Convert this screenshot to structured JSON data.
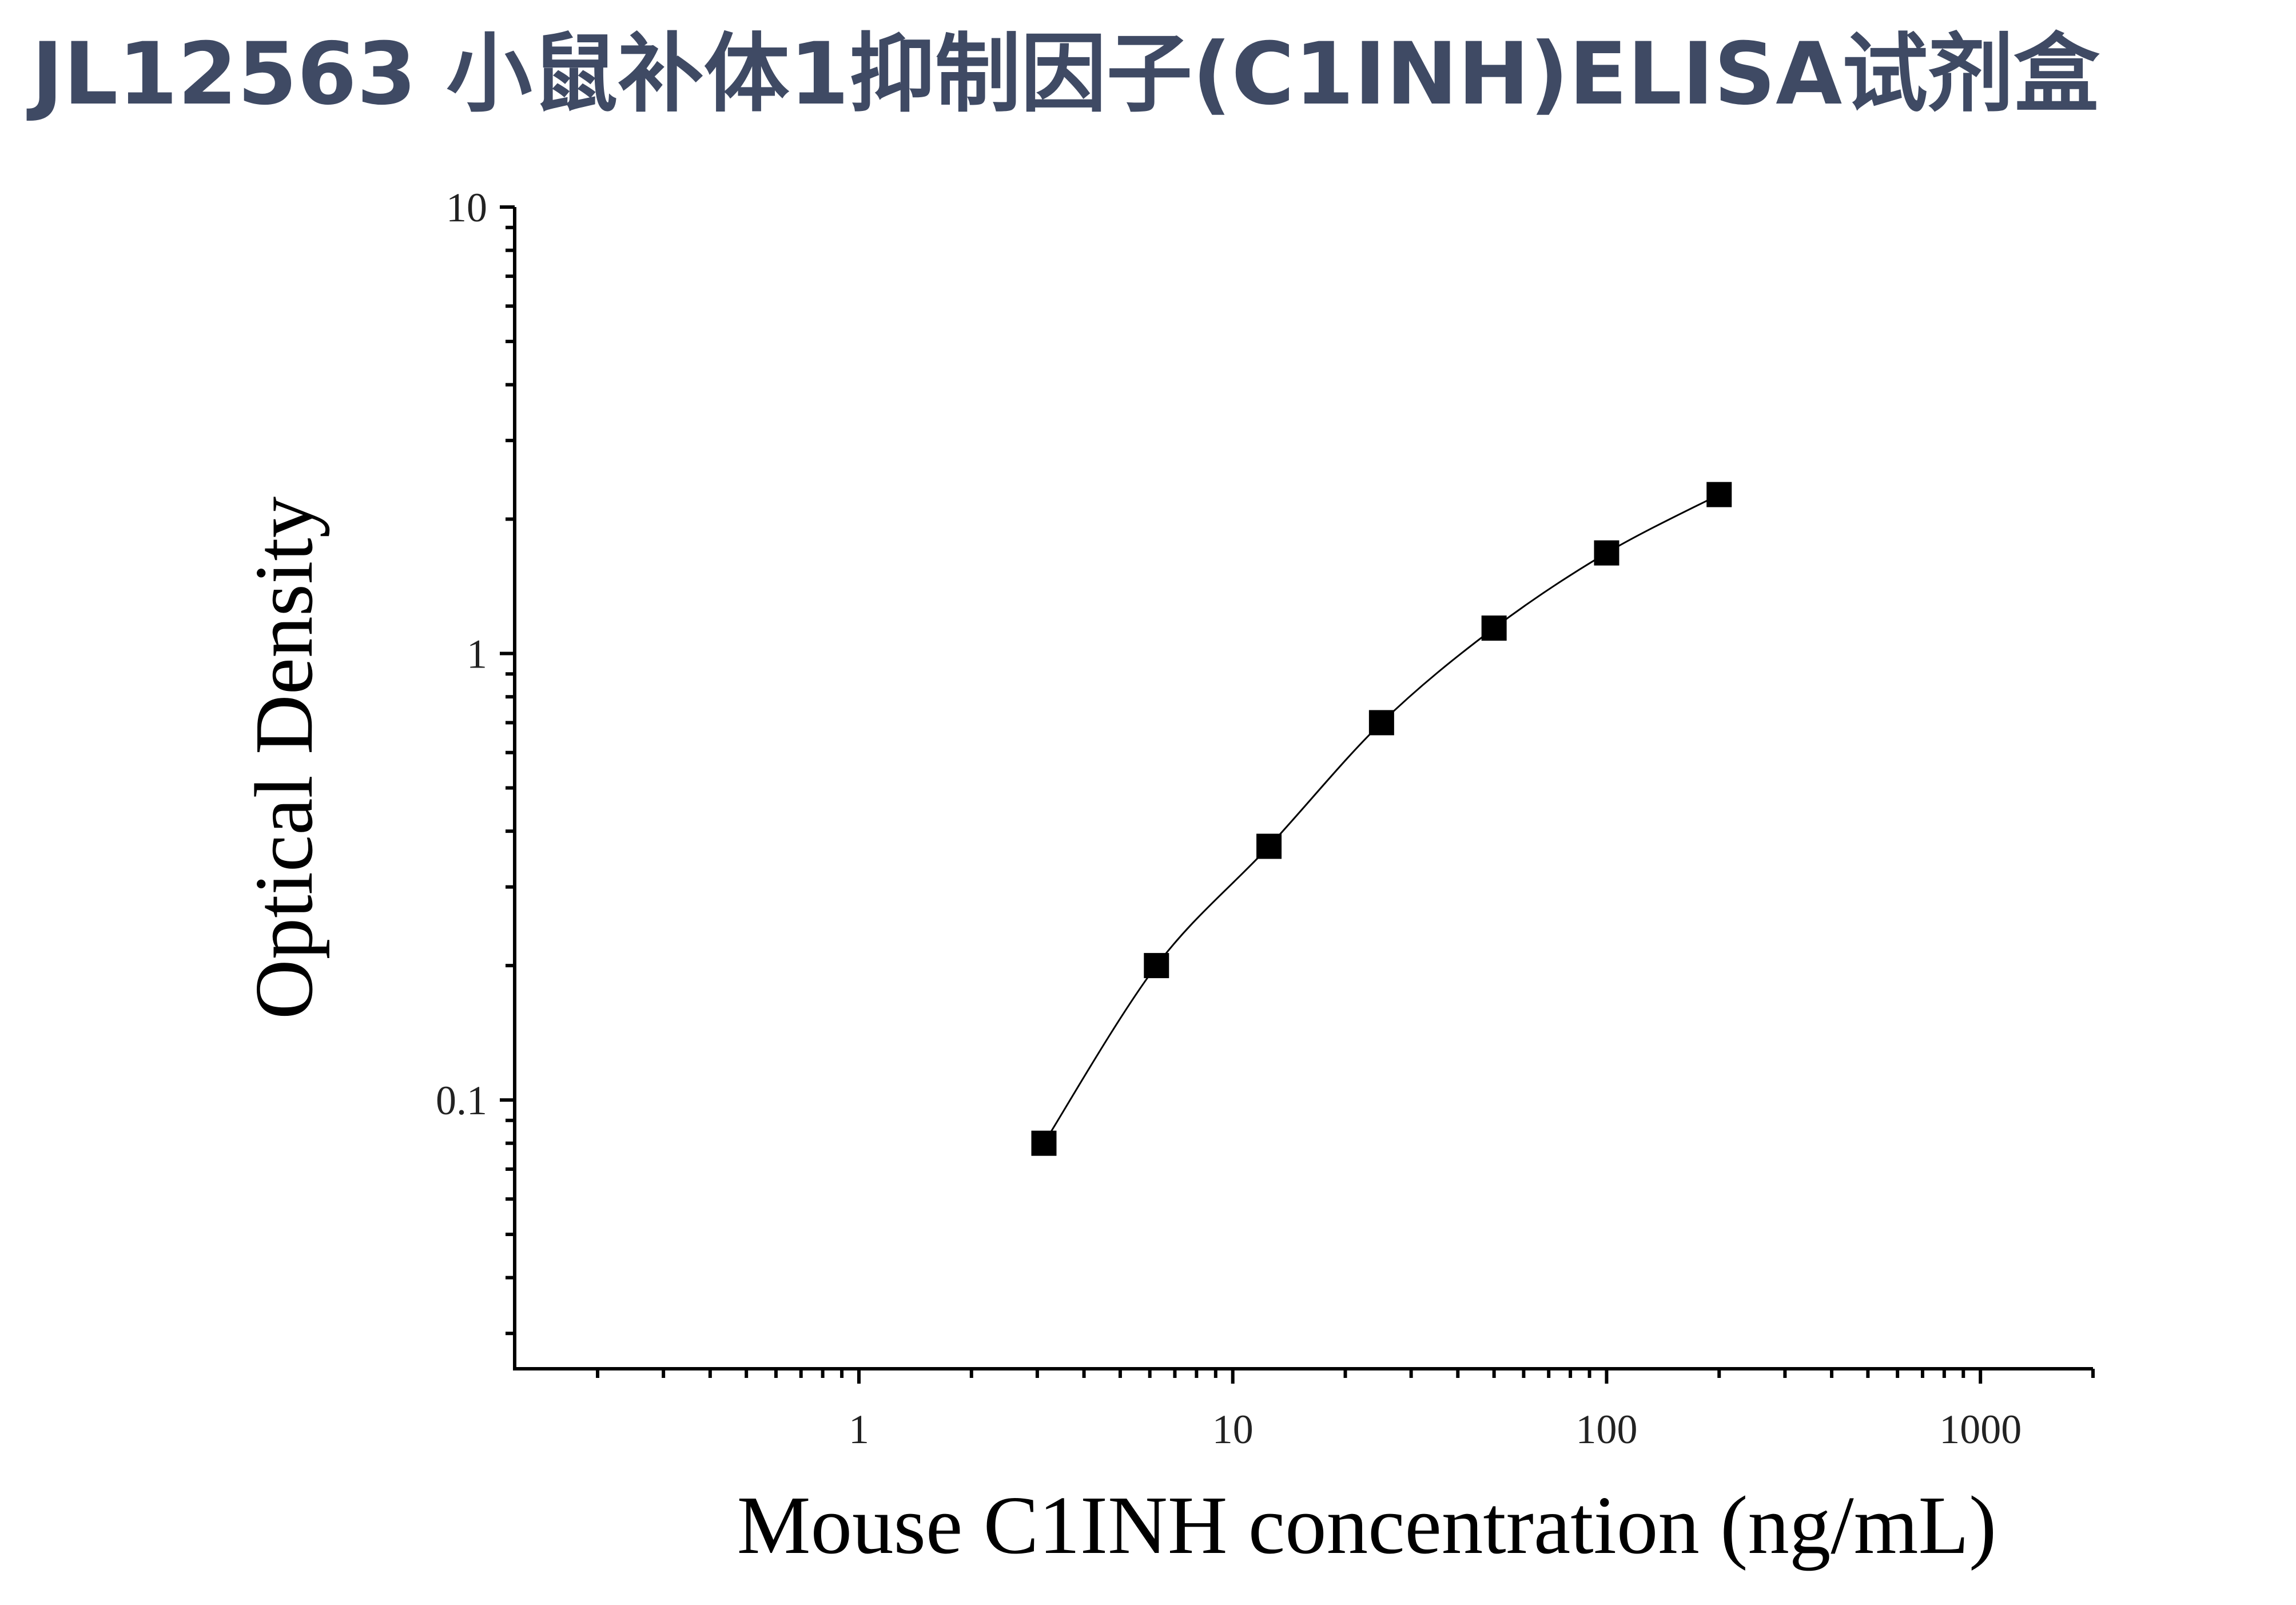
{
  "title": "JL12563 小鼠补体1抑制因子(C1INH)ELISA试剂盒",
  "chart_data": {
    "type": "scatter",
    "xlabel": "Mouse C1INH concentration (ng/mL)",
    "ylabel": "Optical Density",
    "x_scale": "log",
    "y_scale": "log",
    "xlim": [
      0.12,
      2000
    ],
    "ylim": [
      0.025,
      10
    ],
    "x_ticks": [
      1,
      10,
      100,
      1000
    ],
    "x_tick_labels": [
      "1",
      "10",
      "100",
      "1000"
    ],
    "y_ticks": [
      0.1,
      1,
      10
    ],
    "y_tick_labels": [
      "0.1",
      "1",
      "10"
    ],
    "grid": false,
    "legend": "none",
    "marker": "square",
    "marker_color": "#000000",
    "line_color": "#000000",
    "series": [
      {
        "x": [
          3.125,
          6.25,
          12.5,
          25,
          50,
          100,
          200
        ],
        "y": [
          0.08,
          0.2,
          0.37,
          0.7,
          1.14,
          1.68,
          2.27
        ],
        "fit_curve": true
      }
    ]
  }
}
